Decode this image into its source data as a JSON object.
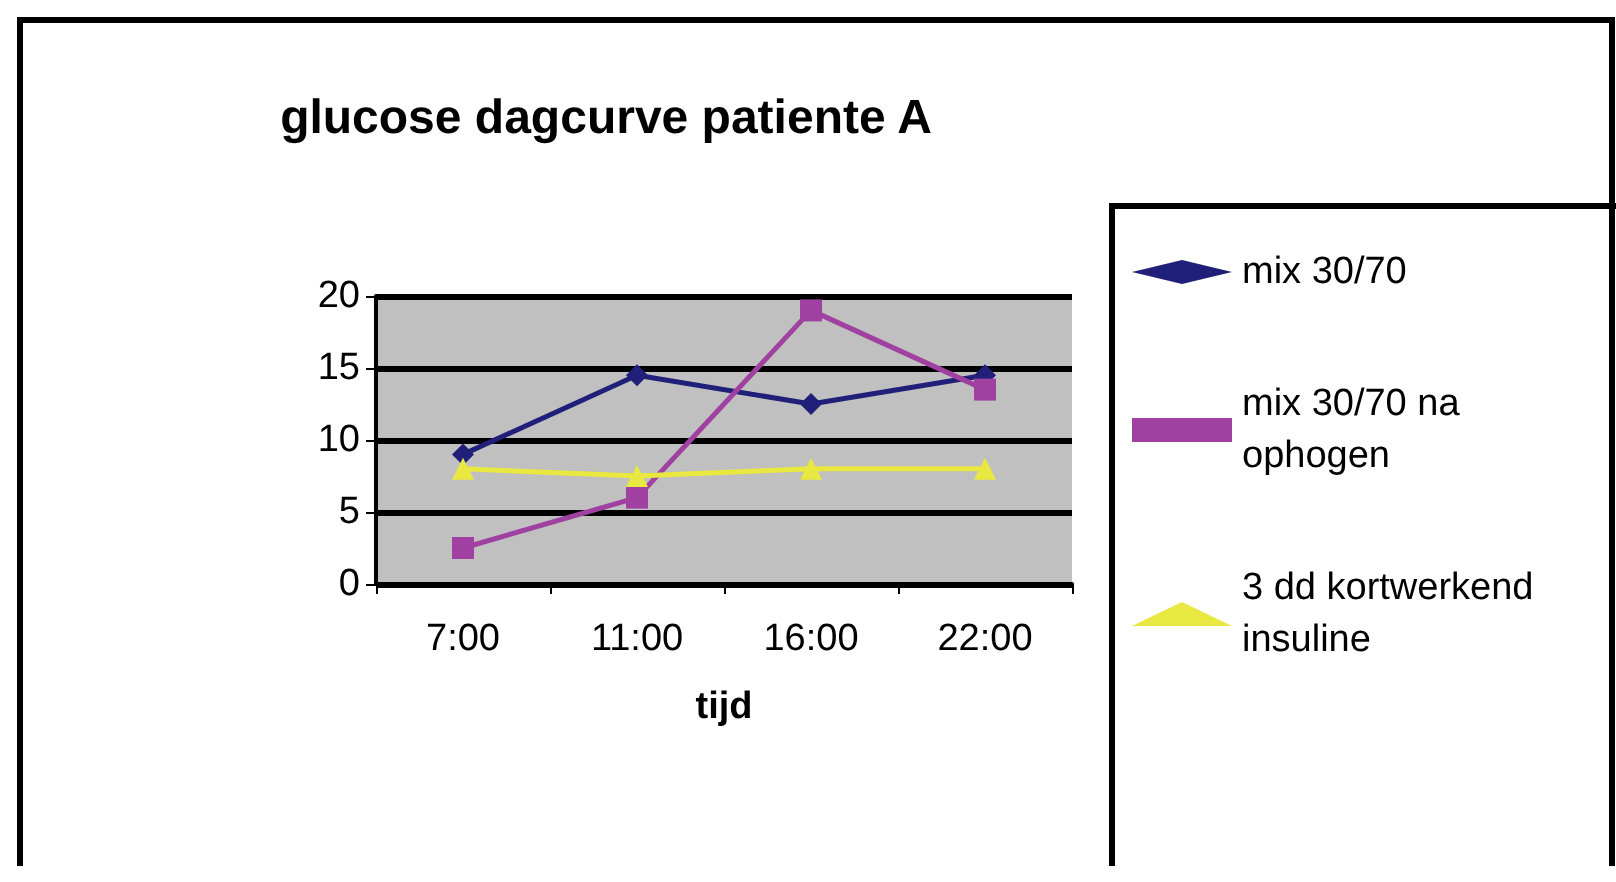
{
  "chart_data": {
    "type": "line",
    "title": "glucose dagcurve patiente A",
    "xlabel": "tijd",
    "categories": [
      "7:00",
      "11:00",
      "16:00",
      "22:00"
    ],
    "series": [
      {
        "name": "mix 30/70",
        "color": "#20207a",
        "marker": "diamond",
        "values": [
          9,
          14.5,
          12.5,
          14.5
        ]
      },
      {
        "name": "mix 30/70 na ophogen",
        "color": "#a040a0",
        "marker": "square",
        "values": [
          2.5,
          6,
          19,
          13.5
        ]
      },
      {
        "name": "3 dd kortwerkend insuline",
        "color": "#e8e840",
        "marker": "triangle",
        "values": [
          8,
          7.5,
          8,
          8
        ]
      }
    ],
    "ylim": [
      0,
      20
    ],
    "yticks": [
      0,
      5,
      10,
      15,
      20
    ],
    "grid": "y",
    "legend": "right"
  }
}
